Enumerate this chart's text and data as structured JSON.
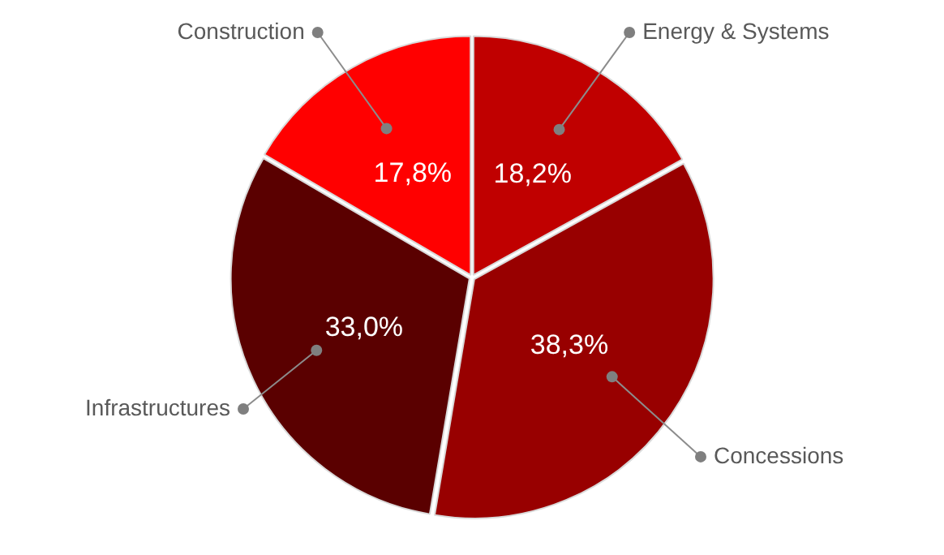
{
  "chart_data": {
    "type": "pie",
    "categories": [
      "Energy & Systems",
      "Concessions",
      "Infrastructures",
      "Construction"
    ],
    "values": [
      18.2,
      38.3,
      33.0,
      17.8
    ],
    "value_labels": [
      "18,2%",
      "38,3%",
      "33,0%",
      "17,8%"
    ],
    "colors": [
      "#c00000",
      "#980000",
      "#5a0000",
      "#ff0000"
    ],
    "legend": false
  }
}
